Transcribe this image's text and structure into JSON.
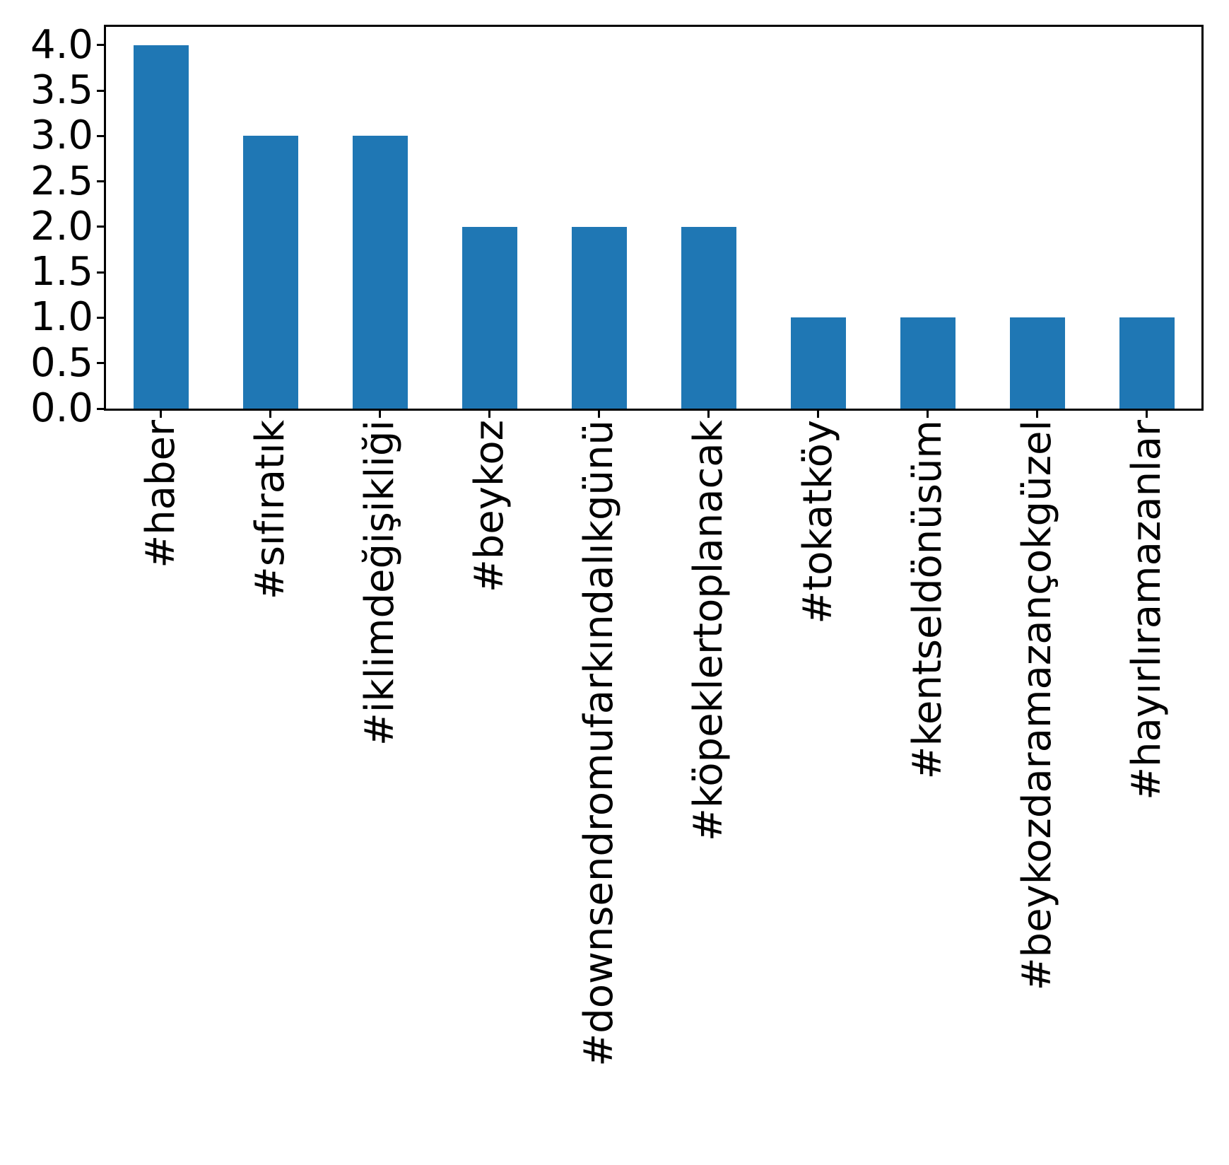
{
  "chart_data": {
    "type": "bar",
    "title": "",
    "xlabel": "",
    "ylabel": "",
    "categories": [
      "#haber",
      "#sıfıratık",
      "#iklimdeğişikliği",
      "#beykoz",
      "#downsendromufarkındalıkgünü",
      "#köpeklertoplanacak",
      "#tokatköy",
      "#kentseldönüsüm",
      "#beykozdaramazançokgüzel",
      "#hayırlıramazanlar"
    ],
    "values": [
      4,
      3,
      3,
      2,
      2,
      2,
      1,
      1,
      1,
      1
    ],
    "ylim": [
      0,
      4.2
    ],
    "yticks": [
      0.0,
      0.5,
      1.0,
      1.5,
      2.0,
      2.5,
      3.0,
      3.5,
      4.0
    ],
    "ytick_labels": [
      "0.0",
      "0.5",
      "1.0",
      "1.5",
      "2.0",
      "2.5",
      "3.0",
      "3.5",
      "4.0"
    ],
    "grid": false,
    "legend": null,
    "bar_color": "#1f77b4",
    "axis_color": "#000000",
    "text_color": "#000000",
    "x_labels_rotation_deg": 90
  }
}
